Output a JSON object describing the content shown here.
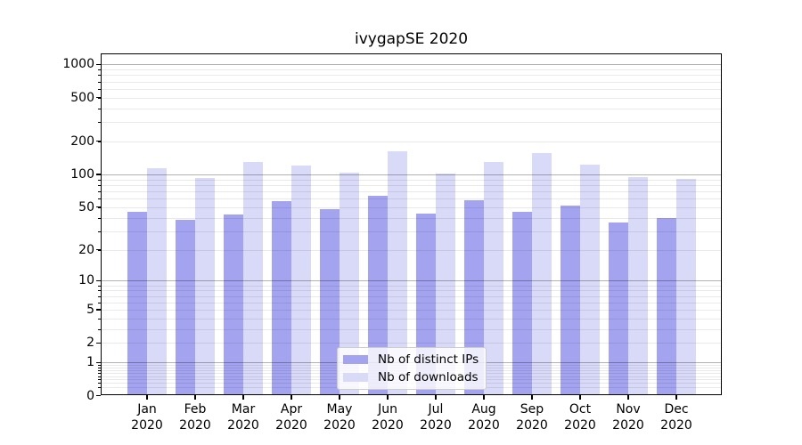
{
  "chart_data": {
    "type": "bar",
    "title": "ivygapSE 2020",
    "xlabel": "",
    "ylabel": "",
    "yscale": "log10(value+1)",
    "ylim": [
      0,
      1280
    ],
    "grid": true,
    "legend_position": "lower center",
    "yticks": [
      "1000",
      "500",
      "200",
      "100",
      "50",
      "20",
      "10",
      "5",
      "2",
      "1",
      "0"
    ],
    "categories": [
      {
        "month": "Jan",
        "year": "2020"
      },
      {
        "month": "Feb",
        "year": "2020"
      },
      {
        "month": "Mar",
        "year": "2020"
      },
      {
        "month": "Apr",
        "year": "2020"
      },
      {
        "month": "May",
        "year": "2020"
      },
      {
        "month": "Jun",
        "year": "2020"
      },
      {
        "month": "Jul",
        "year": "2020"
      },
      {
        "month": "Aug",
        "year": "2020"
      },
      {
        "month": "Sep",
        "year": "2020"
      },
      {
        "month": "Oct",
        "year": "2020"
      },
      {
        "month": "Nov",
        "year": "2020"
      },
      {
        "month": "Dec",
        "year": "2020"
      }
    ],
    "series": [
      {
        "name": "Nb of distinct IPs",
        "color": "#a3a3f0",
        "values": [
          45,
          38,
          43,
          57,
          48,
          64,
          44,
          58,
          45,
          52,
          36,
          40
        ]
      },
      {
        "name": "Nb of downloads",
        "color": "#d9d9f8",
        "values": [
          115,
          93,
          130,
          120,
          104,
          164,
          102,
          130,
          158,
          122,
          95,
          91
        ]
      }
    ]
  },
  "colors": {
    "background": "#ffffff",
    "axis": "#000000",
    "grid_major": "#b3b3b3",
    "grid_minor": "#ebebeb",
    "legend_border": "#cccccc"
  }
}
